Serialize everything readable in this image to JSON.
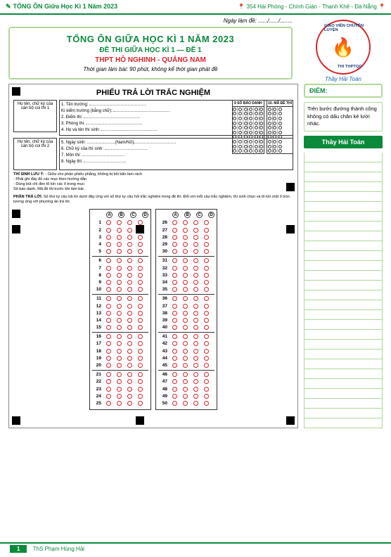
{
  "header": {
    "left": "TỔNG ÔN Giữa Học Kì 1 Năm 2023",
    "right": "354 Hải Phòng - Chính Gián - Thanh Khê - Đà Nẵng"
  },
  "date": {
    "label": "Ngày làm đề: ....../....../........"
  },
  "title": {
    "main": "TỔNG ÔN GIỮA HỌC KÌ 1 NĂM 2023",
    "sub": "ĐỀ THI GIỮA HỌC KÌ 1 — ĐỀ 1",
    "school": "THPT HỒ NGHINH - QUẢNG NAM",
    "time": "Thời gian làm bài: 90 phút, không kể thời gian phát đề"
  },
  "logo": {
    "teacher": "Thầy Hải Toán"
  },
  "sheet": {
    "title": "PHIẾU TRẢ LỜI TRẮC NGHIỆM",
    "sig1": "Họ tên, chữ ký của cán bộ coi thi 1",
    "sig2": "Họ tên, chữ ký của cán bộ coi thi 2",
    "info": [
      "1. Tên trường: ",
      "   Kì kiểm trường (bằng chữ): ",
      "2. Điểm thi: ",
      "3. Phòng thi: ",
      "4. Họ và tên thí sinh: ",
      "5. Ngày sinh: ........................(Nam/Nữ)",
      "6. Chữ ký của thí sinh: ",
      "7. Môn thi: ",
      "8. Ngày thi: "
    ],
    "id_titles": [
      "9 SỐ BÁO DANH",
      "10. MÃ ĐỀ THI"
    ],
    "note_title": "THÍ SINH LƯU Ý:",
    "note_lines": [
      "- Giữa cho phần phiếu phẳng, không bị bôi bẩn làm rách",
      "- Phải ghi đầy đủ các mục theo hướng dẫn",
      "- Dùng bút chì đen tô kín các ô trong mục:",
      "Số báo danh, Mã đề thi trước khi làm bài."
    ],
    "ans_title": "PHẦN TRẢ LỜI:",
    "ans_note": "Số thứ tự câu trả lời dưới đây ứng với số thứ tự câu hỏi trắc nghiệm trong đề thi. Đối với mỗi câu trắc nghiệm, thí sinh chọn và tô kín một ô tròn tương ứng với phương án trả lời.",
    "headers": [
      "A",
      "B",
      "C",
      "D"
    ],
    "q_left": [
      1,
      2,
      3,
      4,
      5,
      6,
      7,
      8,
      9,
      10,
      11,
      12,
      13,
      14,
      15,
      16,
      17,
      18,
      19,
      20,
      21,
      22,
      23,
      24,
      25
    ],
    "q_right": [
      26,
      27,
      28,
      29,
      30,
      31,
      32,
      33,
      34,
      35,
      36,
      37,
      38,
      39,
      40,
      41,
      42,
      43,
      44,
      45,
      46,
      47,
      48,
      49,
      50
    ]
  },
  "sidebar": {
    "score": "ĐIỂM:",
    "quote": "Trên bước đường thành công không có dấu chân kẻ lười nhác.",
    "name": "Thầy Hải Toán"
  },
  "footer": {
    "page": "1",
    "name": "ThS Phạm Hùng Hải"
  }
}
